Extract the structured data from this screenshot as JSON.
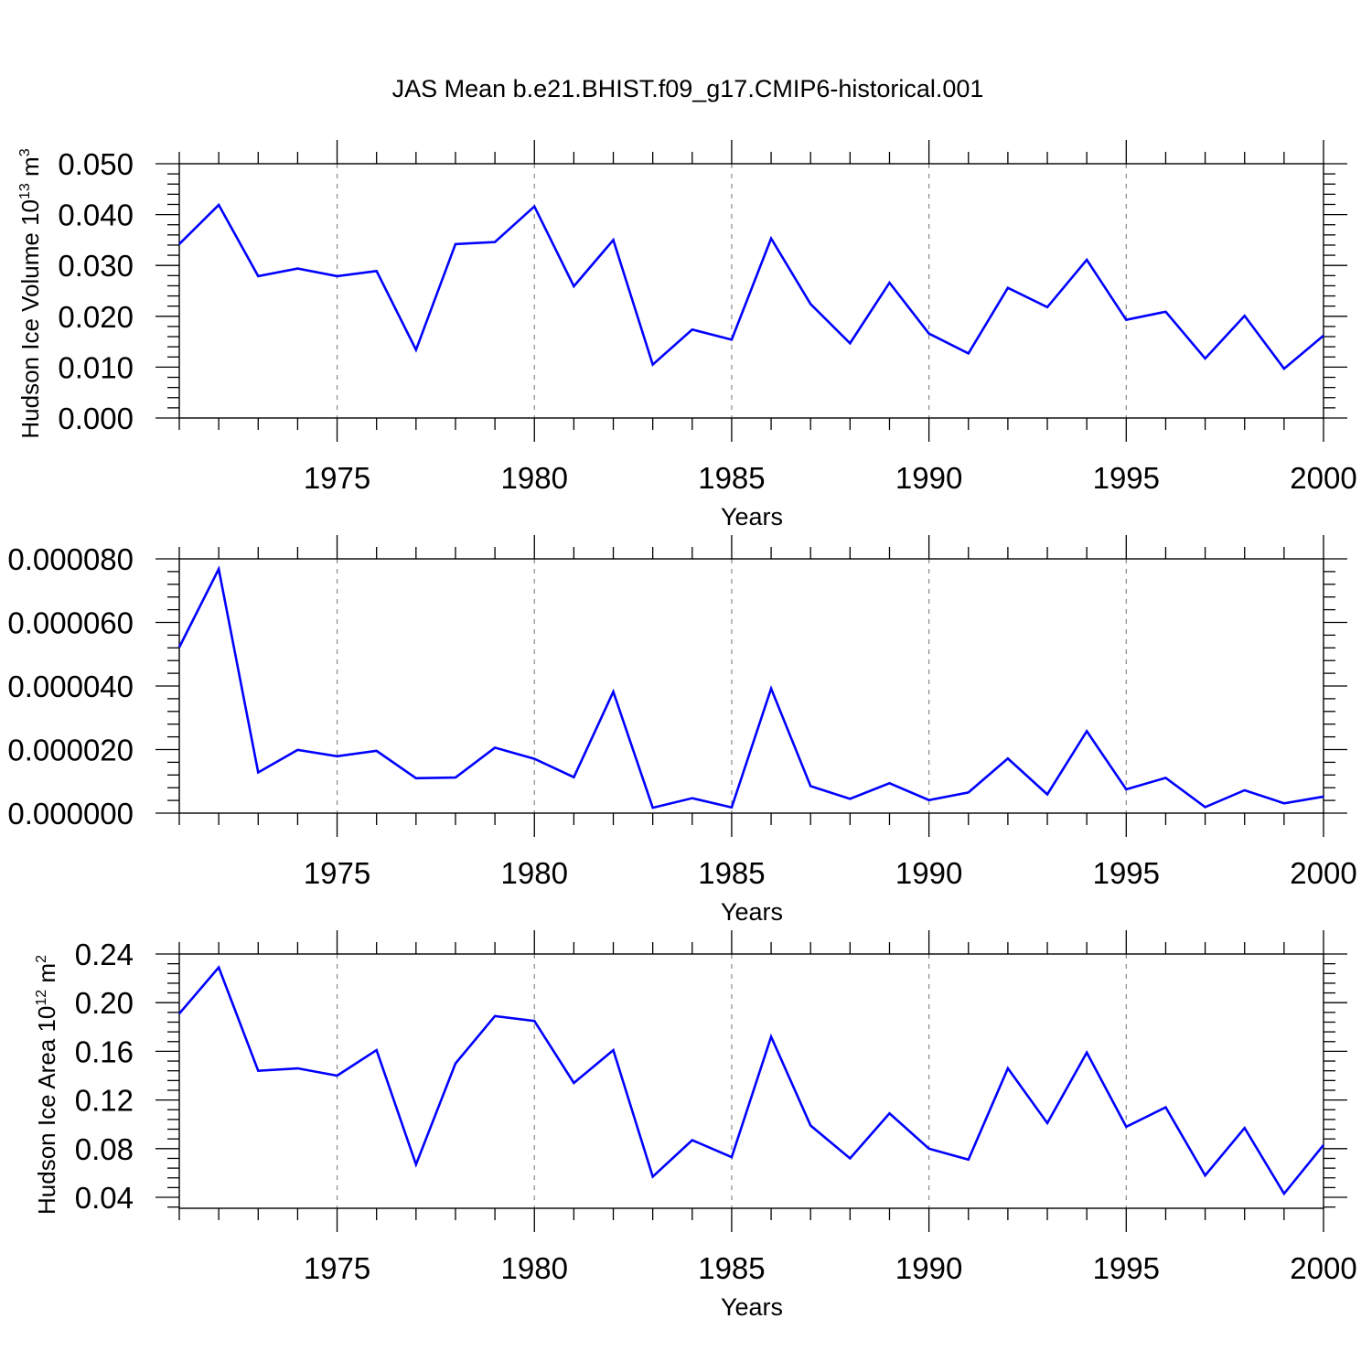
{
  "figure": {
    "title": "JAS Mean b.e21.BHIST.f09_g17.CMIP6-historical.001",
    "line_color": "#0000ff",
    "grid_color": "#888888"
  },
  "chart_data": [
    {
      "type": "line",
      "title": "JAS Mean b.e21.BHIST.f09_g17.CMIP6-historical.001",
      "xlabel": "Years",
      "ylabel": {
        "prefix": "Hudson Ice Volume 10",
        "exponent": "13",
        "unit": " m",
        "unit_exponent": "3"
      },
      "xlim": [
        1971,
        2000
      ],
      "ylim": [
        0.0,
        0.05
      ],
      "x_ticks": [
        1975,
        1980,
        1985,
        1990,
        1995,
        2000
      ],
      "x_tick_labels": [
        "1975",
        "1980",
        "1985",
        "1990",
        "1995",
        "2000"
      ],
      "y_ticks": [
        0.0,
        0.01,
        0.02,
        0.03,
        0.04,
        0.05
      ],
      "y_tick_labels": [
        "0.000",
        "0.010",
        "0.020",
        "0.030",
        "0.040",
        "0.050"
      ],
      "y_minor_step": 0.002,
      "grid": "x-dashed",
      "x": [
        1971,
        1972,
        1973,
        1974,
        1975,
        1976,
        1977,
        1978,
        1979,
        1980,
        1981,
        1982,
        1983,
        1984,
        1985,
        1986,
        1987,
        1988,
        1989,
        1990,
        1991,
        1992,
        1993,
        1994,
        1995,
        1996,
        1997,
        1998,
        1999,
        2000
      ],
      "series": [
        {
          "values": [
            0.0342,
            0.0419,
            0.0279,
            0.0294,
            0.0279,
            0.0289,
            0.0134,
            0.0342,
            0.0346,
            0.0416,
            0.0259,
            0.035,
            0.0105,
            0.0174,
            0.0154,
            0.0353,
            0.0224,
            0.0147,
            0.0266,
            0.0166,
            0.0127,
            0.0256,
            0.0218,
            0.0311,
            0.0193,
            0.0209,
            0.0117,
            0.0201,
            0.0097,
            0.0162
          ]
        }
      ]
    },
    {
      "type": "line",
      "title": "",
      "xlabel": "Years",
      "ylabel": {
        "prefix": "",
        "exponent": "",
        "unit": "",
        "unit_exponent": ""
      },
      "xlim": [
        1971,
        2000
      ],
      "ylim": [
        0.0,
        8e-05
      ],
      "x_ticks": [
        1975,
        1980,
        1985,
        1990,
        1995,
        2000
      ],
      "x_tick_labels": [
        "1975",
        "1980",
        "1985",
        "1990",
        "1995",
        "2000"
      ],
      "y_ticks": [
        0.0,
        2e-05,
        4e-05,
        6e-05,
        8e-05
      ],
      "y_tick_labels": [
        "0.000000",
        "0.000020",
        "0.000040",
        "0.000060",
        "0.000080"
      ],
      "y_minor_step": 4e-06,
      "grid": "x-dashed",
      "x": [
        1971,
        1972,
        1973,
        1974,
        1975,
        1976,
        1977,
        1978,
        1979,
        1980,
        1981,
        1982,
        1983,
        1984,
        1985,
        1986,
        1987,
        1988,
        1989,
        1990,
        1991,
        1992,
        1993,
        1994,
        1995,
        1996,
        1997,
        1998,
        1999,
        2000
      ],
      "series": [
        {
          "values": [
            5.22e-05,
            7.68e-05,
            1.28e-05,
            1.99e-05,
            1.79e-05,
            1.96e-05,
            1.1e-05,
            1.12e-05,
            2.06e-05,
            1.71e-05,
            1.13e-05,
            3.82e-05,
            1.7e-06,
            4.7e-06,
            1.8e-06,
            3.92e-05,
            8.5e-06,
            4.5e-06,
            9.4e-06,
            4.1e-06,
            6.5e-06,
            1.72e-05,
            5.9e-06,
            2.58e-05,
            7.5e-06,
            1.11e-05,
            1.9e-06,
            7.2e-06,
            3.1e-06,
            5.2e-06
          ]
        }
      ]
    },
    {
      "type": "line",
      "title": "",
      "xlabel": "Years",
      "ylabel": {
        "prefix": "Hudson Ice Area 10",
        "exponent": "12",
        "unit": " m",
        "unit_exponent": "2"
      },
      "xlim": [
        1971,
        2000
      ],
      "ylim": [
        0.031,
        0.24
      ],
      "x_ticks": [
        1975,
        1980,
        1985,
        1990,
        1995,
        2000
      ],
      "x_tick_labels": [
        "1975",
        "1980",
        "1985",
        "1990",
        "1995",
        "2000"
      ],
      "y_ticks": [
        0.04,
        0.08,
        0.12,
        0.16,
        0.2,
        0.24
      ],
      "y_tick_labels": [
        "0.04",
        "0.08",
        "0.12",
        "0.16",
        "0.20",
        "0.24"
      ],
      "y_minor_step": 0.008,
      "grid": "x-dashed",
      "x": [
        1971,
        1972,
        1973,
        1974,
        1975,
        1976,
        1977,
        1978,
        1979,
        1980,
        1981,
        1982,
        1983,
        1984,
        1985,
        1986,
        1987,
        1988,
        1989,
        1990,
        1991,
        1992,
        1993,
        1994,
        1995,
        1996,
        1997,
        1998,
        1999,
        2000
      ],
      "series": [
        {
          "values": [
            0.191,
            0.229,
            0.144,
            0.146,
            0.14,
            0.161,
            0.067,
            0.15,
            0.189,
            0.185,
            0.134,
            0.161,
            0.057,
            0.087,
            0.073,
            0.172,
            0.099,
            0.072,
            0.109,
            0.08,
            0.071,
            0.146,
            0.101,
            0.159,
            0.098,
            0.114,
            0.058,
            0.097,
            0.043,
            0.083
          ]
        }
      ]
    }
  ]
}
